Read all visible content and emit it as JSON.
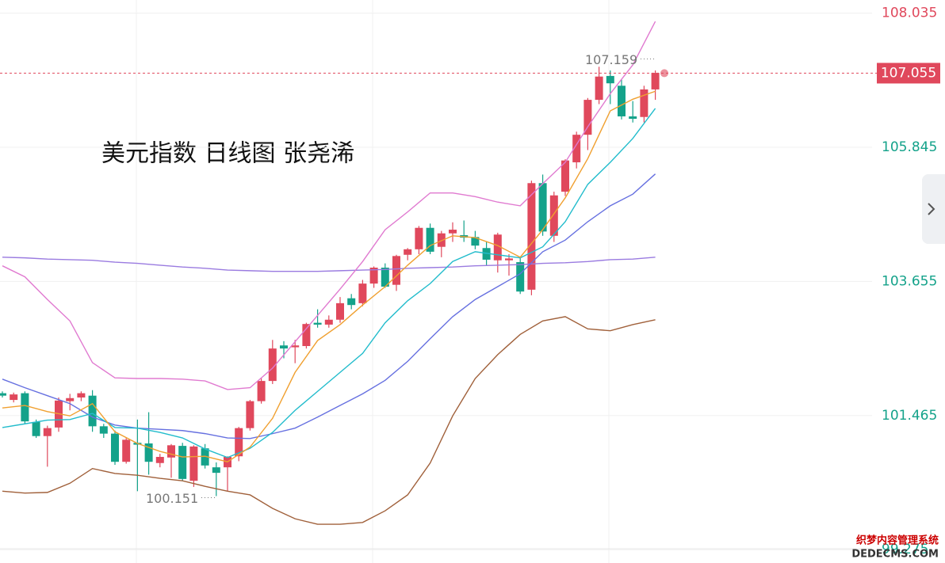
{
  "chart_data": {
    "type": "candlestick",
    "title": "美元指数 日线图 张尧浠",
    "up_color": "#e0485c",
    "down_color": "#14a28a",
    "ylim": [
      99.2,
      108.25
    ],
    "yticks": [
      108.035,
      105.845,
      103.655,
      101.465,
      99.275
    ],
    "grid": true,
    "current": 107.055,
    "max_label": 107.159,
    "min_label": 100.151,
    "open": [
      101.83,
      101.72,
      101.83,
      101.36,
      101.13,
      101.27,
      101.7,
      101.76,
      101.79,
      101.29,
      101.17,
      100.71,
      101.02,
      101.01,
      100.69,
      100.78,
      100.97,
      100.4,
      100.93,
      100.62,
      100.62,
      100.8,
      101.26,
      101.7,
      102.03,
      102.61,
      102.58,
      102.6,
      102.98,
      102.95,
      103.03,
      103.38,
      103.3,
      103.62,
      103.88,
      103.6,
      104.09,
      104.18,
      104.53,
      104.22,
      104.44,
      104.41,
      104.38,
      104.2,
      104.0,
      104.0,
      103.97,
      103.52,
      105.26,
      104.4,
      105.12,
      105.6,
      106.05,
      106.62,
      107.01,
      106.85,
      106.35,
      106.34,
      106.79
    ],
    "high": [
      101.86,
      101.84,
      101.86,
      101.4,
      101.3,
      101.76,
      101.82,
      101.86,
      101.88,
      101.33,
      101.22,
      101.1,
      101.4,
      101.52,
      100.84,
      101.0,
      101.02,
      100.98,
      101.0,
      100.7,
      100.8,
      101.28,
      101.72,
      102.08,
      102.7,
      102.68,
      102.7,
      102.98,
      103.2,
      103.1,
      103.4,
      103.45,
      103.68,
      103.9,
      103.95,
      104.09,
      104.2,
      104.56,
      104.6,
      104.48,
      104.62,
      104.65,
      104.48,
      104.3,
      104.45,
      104.1,
      104.05,
      105.3,
      105.4,
      105.12,
      105.65,
      106.1,
      106.65,
      107.16,
      107.1,
      106.95,
      106.6,
      106.85,
      107.1
    ],
    "low": [
      101.76,
      101.68,
      101.33,
      101.1,
      100.63,
      101.2,
      101.55,
      101.7,
      101.2,
      101.1,
      100.66,
      100.68,
      100.23,
      100.5,
      100.62,
      100.45,
      100.4,
      100.3,
      100.6,
      100.15,
      100.23,
      100.72,
      101.22,
      101.66,
      101.98,
      102.4,
      102.32,
      102.56,
      102.9,
      102.9,
      102.98,
      103.2,
      103.25,
      103.55,
      103.55,
      103.5,
      104.0,
      104.1,
      104.1,
      104.05,
      104.3,
      104.3,
      104.18,
      103.92,
      103.8,
      103.75,
      103.45,
      103.43,
      104.4,
      104.3,
      105.05,
      105.5,
      105.8,
      106.55,
      106.55,
      106.3,
      106.25,
      106.25,
      106.62
    ],
    "close": [
      101.79,
      101.81,
      101.37,
      101.13,
      101.26,
      101.71,
      101.75,
      101.83,
      101.29,
      101.17,
      100.71,
      101.07,
      100.99,
      100.71,
      100.79,
      100.98,
      100.43,
      100.96,
      100.65,
      100.53,
      100.79,
      101.26,
      101.7,
      102.03,
      102.56,
      102.56,
      102.61,
      102.96,
      102.95,
      103.03,
      103.3,
      103.27,
      103.62,
      103.88,
      103.57,
      104.07,
      104.18,
      104.53,
      104.14,
      104.44,
      104.5,
      104.37,
      104.24,
      104.01,
      104.42,
      104.03,
      103.49,
      105.26,
      104.47,
      105.06,
      105.63,
      106.05,
      106.62,
      107.0,
      106.89,
      106.35,
      106.31,
      106.79,
      107.06
    ],
    "lines": {
      "x": [
        0,
        2,
        4,
        6,
        8,
        10,
        12,
        14,
        16,
        18,
        20,
        22,
        24,
        26,
        28,
        30,
        32,
        34,
        36,
        38,
        40,
        42,
        44,
        46,
        48,
        50,
        52,
        54,
        56,
        58
      ],
      "series": [
        {
          "color": "#9a7be0",
          "values": [
            104.05,
            104.04,
            104.02,
            104.01,
            104.0,
            103.97,
            103.95,
            103.92,
            103.89,
            103.87,
            103.84,
            103.83,
            103.82,
            103.82,
            103.82,
            103.83,
            103.84,
            103.85,
            103.87,
            103.88,
            103.89,
            103.91,
            103.92,
            103.93,
            103.95,
            103.96,
            103.98,
            104.01,
            104.02,
            104.05
          ]
        },
        {
          "color": "#e07ad0",
          "values": [
            103.91,
            103.73,
            103.36,
            103.01,
            102.33,
            102.08,
            102.07,
            102.07,
            102.06,
            102.03,
            101.89,
            101.92,
            102.24,
            102.67,
            103.1,
            103.53,
            103.98,
            104.5,
            104.79,
            105.1,
            105.1,
            105.04,
            104.95,
            104.89,
            105.25,
            105.6,
            106.18,
            106.72,
            107.19,
            107.9
          ]
        },
        {
          "color": "#a0603a",
          "values": [
            100.23,
            100.2,
            100.21,
            100.36,
            100.6,
            100.52,
            100.49,
            100.44,
            100.4,
            100.31,
            100.23,
            100.17,
            99.95,
            99.78,
            99.69,
            99.69,
            99.72,
            99.91,
            100.17,
            100.69,
            101.46,
            102.07,
            102.46,
            102.79,
            103.01,
            103.08,
            102.88,
            102.85,
            102.95,
            103.03
          ]
        },
        {
          "color": "#6670e0",
          "values": [
            102.06,
            101.92,
            101.79,
            101.66,
            101.44,
            101.31,
            101.26,
            101.24,
            101.22,
            101.17,
            101.1,
            101.09,
            101.17,
            101.26,
            101.44,
            101.63,
            101.82,
            102.04,
            102.35,
            102.72,
            103.08,
            103.36,
            103.57,
            103.78,
            104.14,
            104.33,
            104.63,
            104.89,
            105.08,
            105.41
          ]
        },
        {
          "color": "#22bccc",
          "values": [
            101.27,
            101.33,
            101.39,
            101.4,
            101.5,
            101.27,
            101.26,
            101.19,
            101.1,
            100.92,
            100.78,
            100.93,
            101.19,
            101.55,
            101.86,
            102.17,
            102.48,
            102.98,
            103.34,
            103.62,
            103.98,
            104.14,
            104.09,
            104.04,
            104.22,
            104.63,
            105.24,
            105.6,
            105.99,
            106.48
          ]
        },
        {
          "color": "#f0a030",
          "values": [
            101.59,
            101.63,
            101.53,
            101.46,
            101.66,
            101.2,
            101.01,
            100.88,
            100.79,
            100.8,
            100.71,
            100.95,
            101.42,
            102.17,
            102.69,
            102.95,
            103.27,
            103.57,
            103.92,
            104.24,
            104.4,
            104.37,
            104.24,
            104.05,
            104.5,
            105.02,
            105.66,
            106.44,
            106.63,
            106.76
          ]
        }
      ]
    },
    "watermark": [
      "织梦内容管理系统",
      "DEDECMS.COM"
    ]
  }
}
